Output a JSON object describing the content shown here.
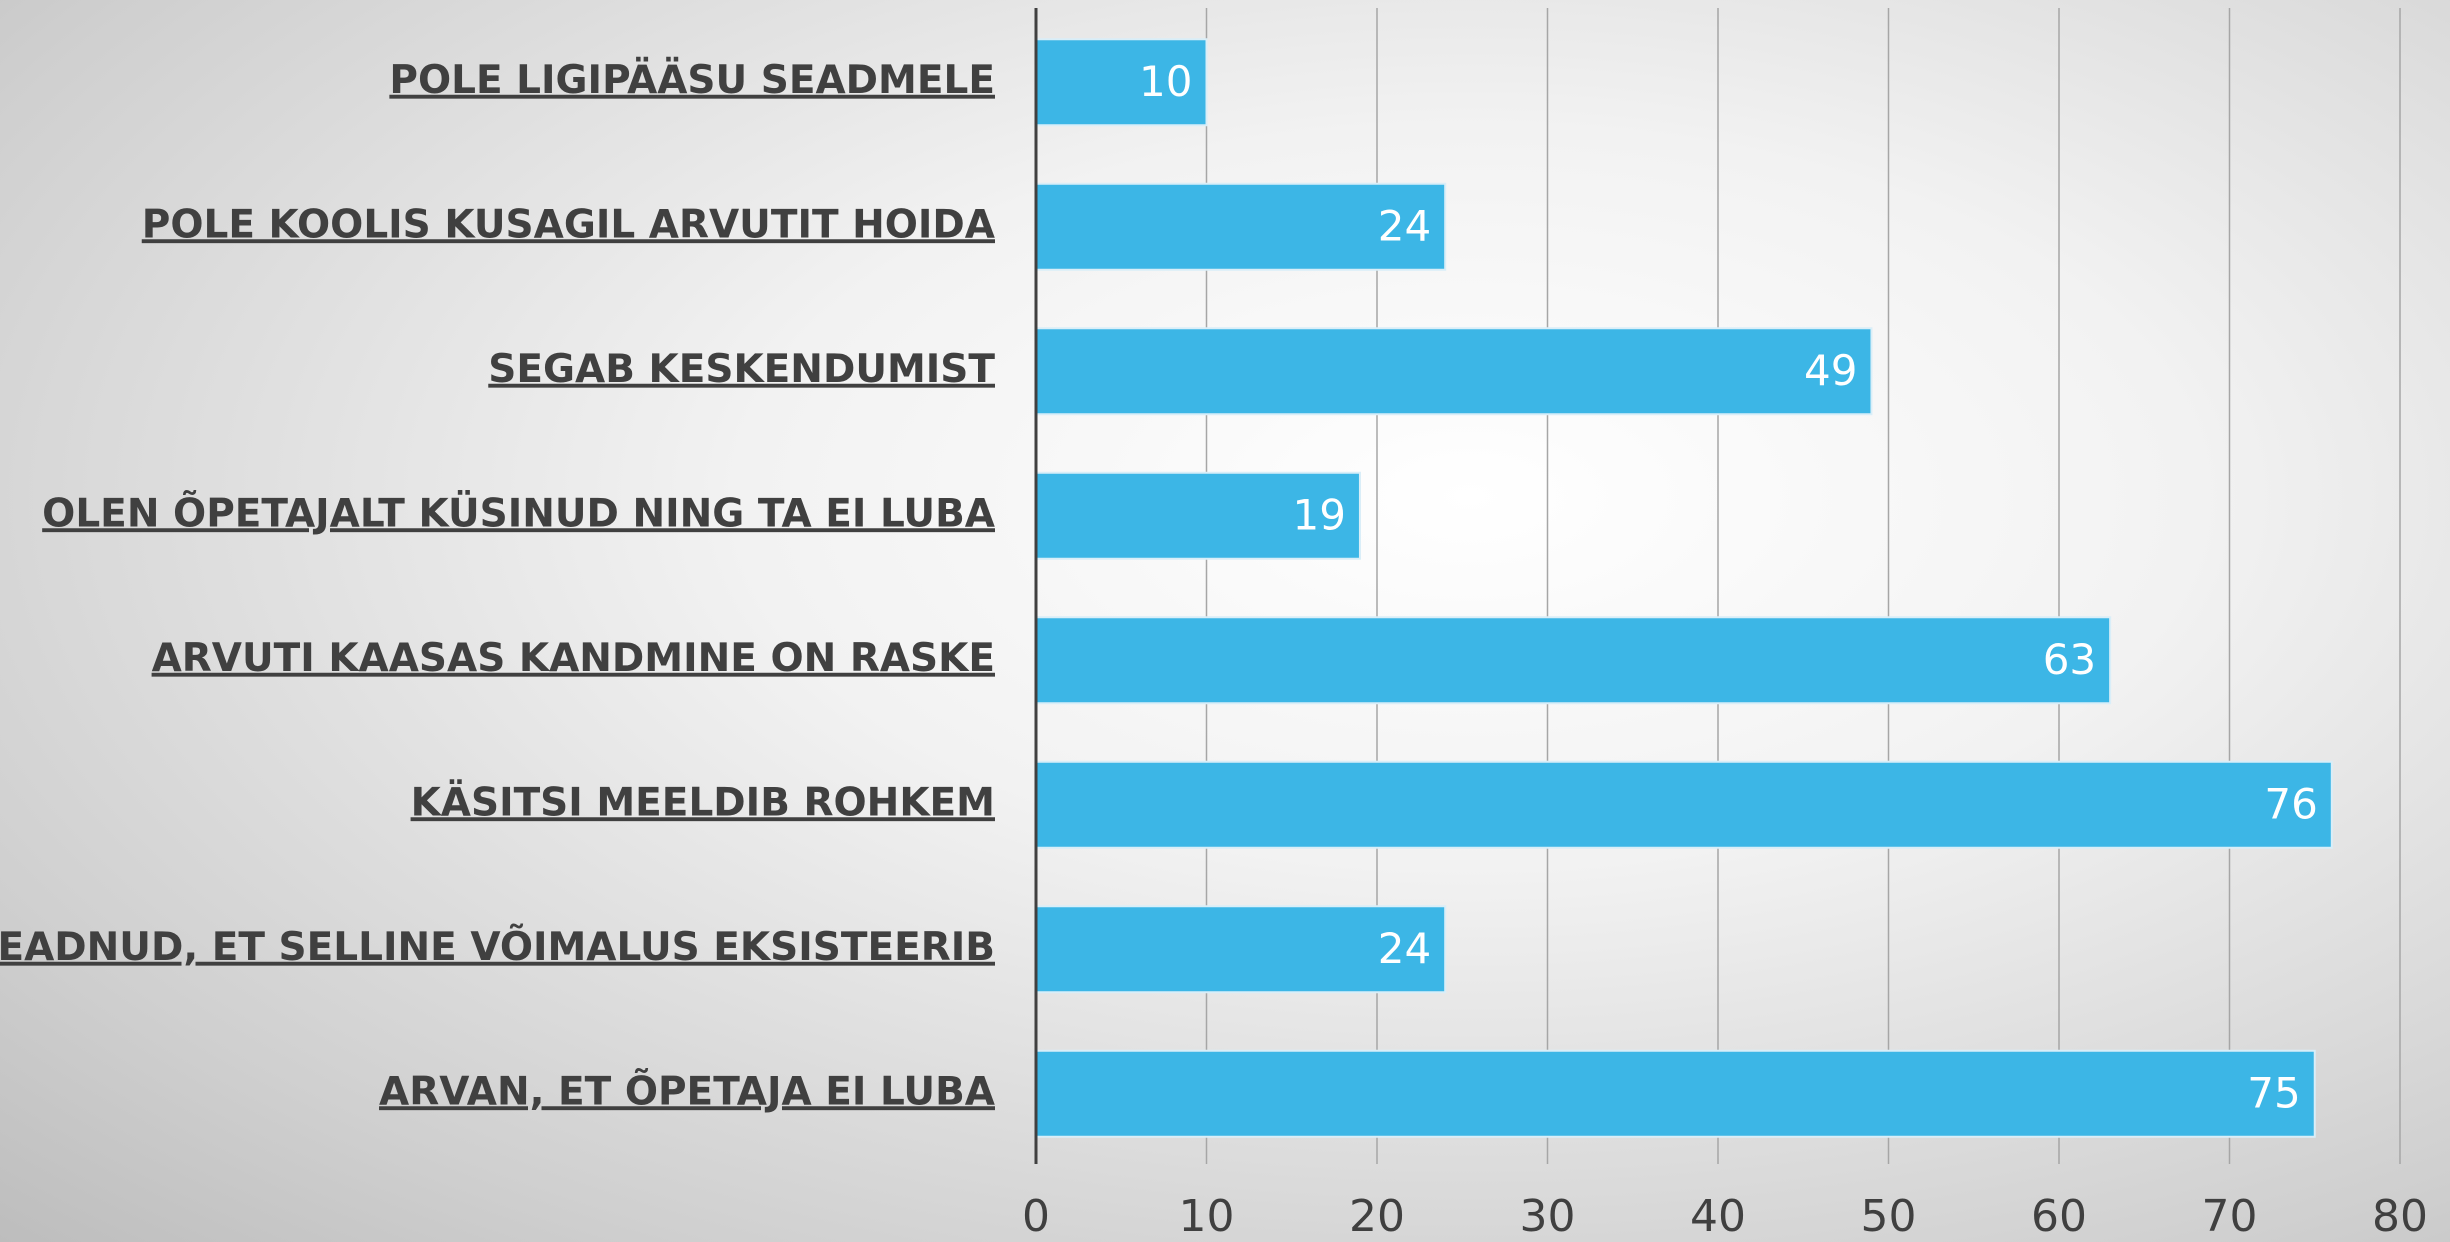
{
  "chart_data": {
    "type": "bar",
    "orientation": "horizontal",
    "categories": [
      "POLE LIGIPÄÄSU SEADMELE",
      "POLE KOOLIS KUSAGIL ARVUTIT HOIDA",
      "SEGAB KESKENDUMIST",
      "OLEN ÕPETAJALT KÜSINUD NING TA EI LUBA",
      "ARVUTI KAASAS KANDMINE ON RASKE",
      "KÄSITSI MEELDIB ROHKEM",
      "EI TEADNUD, ET SELLINE VÕIMALUS EKSISTEERIB",
      "ARVAN, ET ÕPETAJA EI LUBA"
    ],
    "values": [
      10,
      24,
      49,
      19,
      63,
      76,
      24,
      75
    ],
    "color": "#3cb6e6",
    "xlim": [
      0,
      80
    ],
    "xticks": [
      0,
      10,
      20,
      30,
      40,
      50,
      60,
      70,
      80
    ],
    "grid": true
  }
}
